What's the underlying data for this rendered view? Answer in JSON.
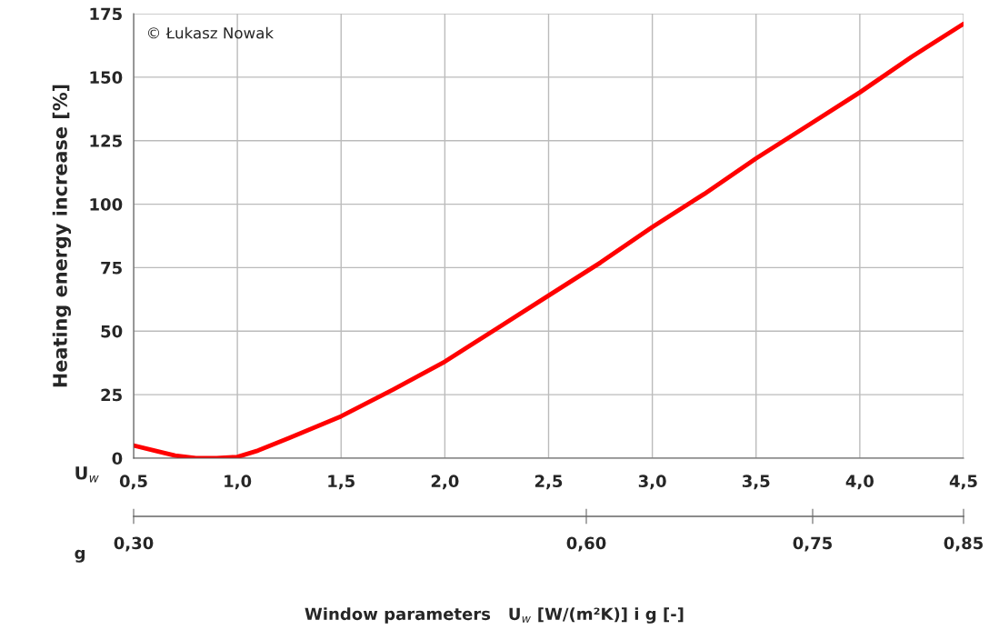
{
  "chart_data": {
    "type": "line",
    "ylabel": "Heating energy increase [%]",
    "xlabel": "Window parameters   U$_{w}$ [W/(m²K)] i g [-]",
    "x2label": "g",
    "annotations": [
      "© Łukasz Nowak",
      "U$_{w}$"
    ],
    "x": [
      0.5,
      0.6,
      0.7,
      0.8,
      0.9,
      1.0,
      1.1,
      1.25,
      1.5,
      1.75,
      2.0,
      2.25,
      2.5,
      2.75,
      3.0,
      3.25,
      3.5,
      3.75,
      4.0,
      4.25,
      4.5
    ],
    "series": [
      {
        "color": "#ff0000",
        "values": [
          5,
          3,
          1,
          0,
          0,
          0.5,
          3,
          8,
          16.5,
          27,
          38,
          51,
          64,
          77,
          91,
          104,
          118,
          131,
          144,
          158,
          171
        ]
      }
    ],
    "xlim": [
      0.5,
      4.5
    ],
    "xticks": [
      {
        "value": 0.5,
        "label": "0,5"
      },
      {
        "value": 1.0,
        "label": "1,0"
      },
      {
        "value": 1.5,
        "label": "1,5"
      },
      {
        "value": 2.0,
        "label": "2,0"
      },
      {
        "value": 2.5,
        "label": "2,5"
      },
      {
        "value": 3.0,
        "label": "3,0"
      },
      {
        "value": 3.5,
        "label": "3,5"
      },
      {
        "value": 4.0,
        "label": "4,0"
      },
      {
        "value": 4.5,
        "label": "4,5"
      }
    ],
    "ylim": [
      0,
      175
    ],
    "yticks": [
      0,
      25,
      50,
      75,
      100,
      125,
      150,
      175
    ],
    "x2lim": [
      0.3,
      0.85
    ],
    "x2ticks": [
      {
        "value": 0.3,
        "label": "0,30"
      },
      {
        "value": 0.6,
        "label": "0,60"
      },
      {
        "value": 0.75,
        "label": "0,75"
      },
      {
        "value": 0.85,
        "label": "0,85"
      }
    ],
    "grid": true,
    "legend": false,
    "marker": "none",
    "line_style": "solid"
  }
}
